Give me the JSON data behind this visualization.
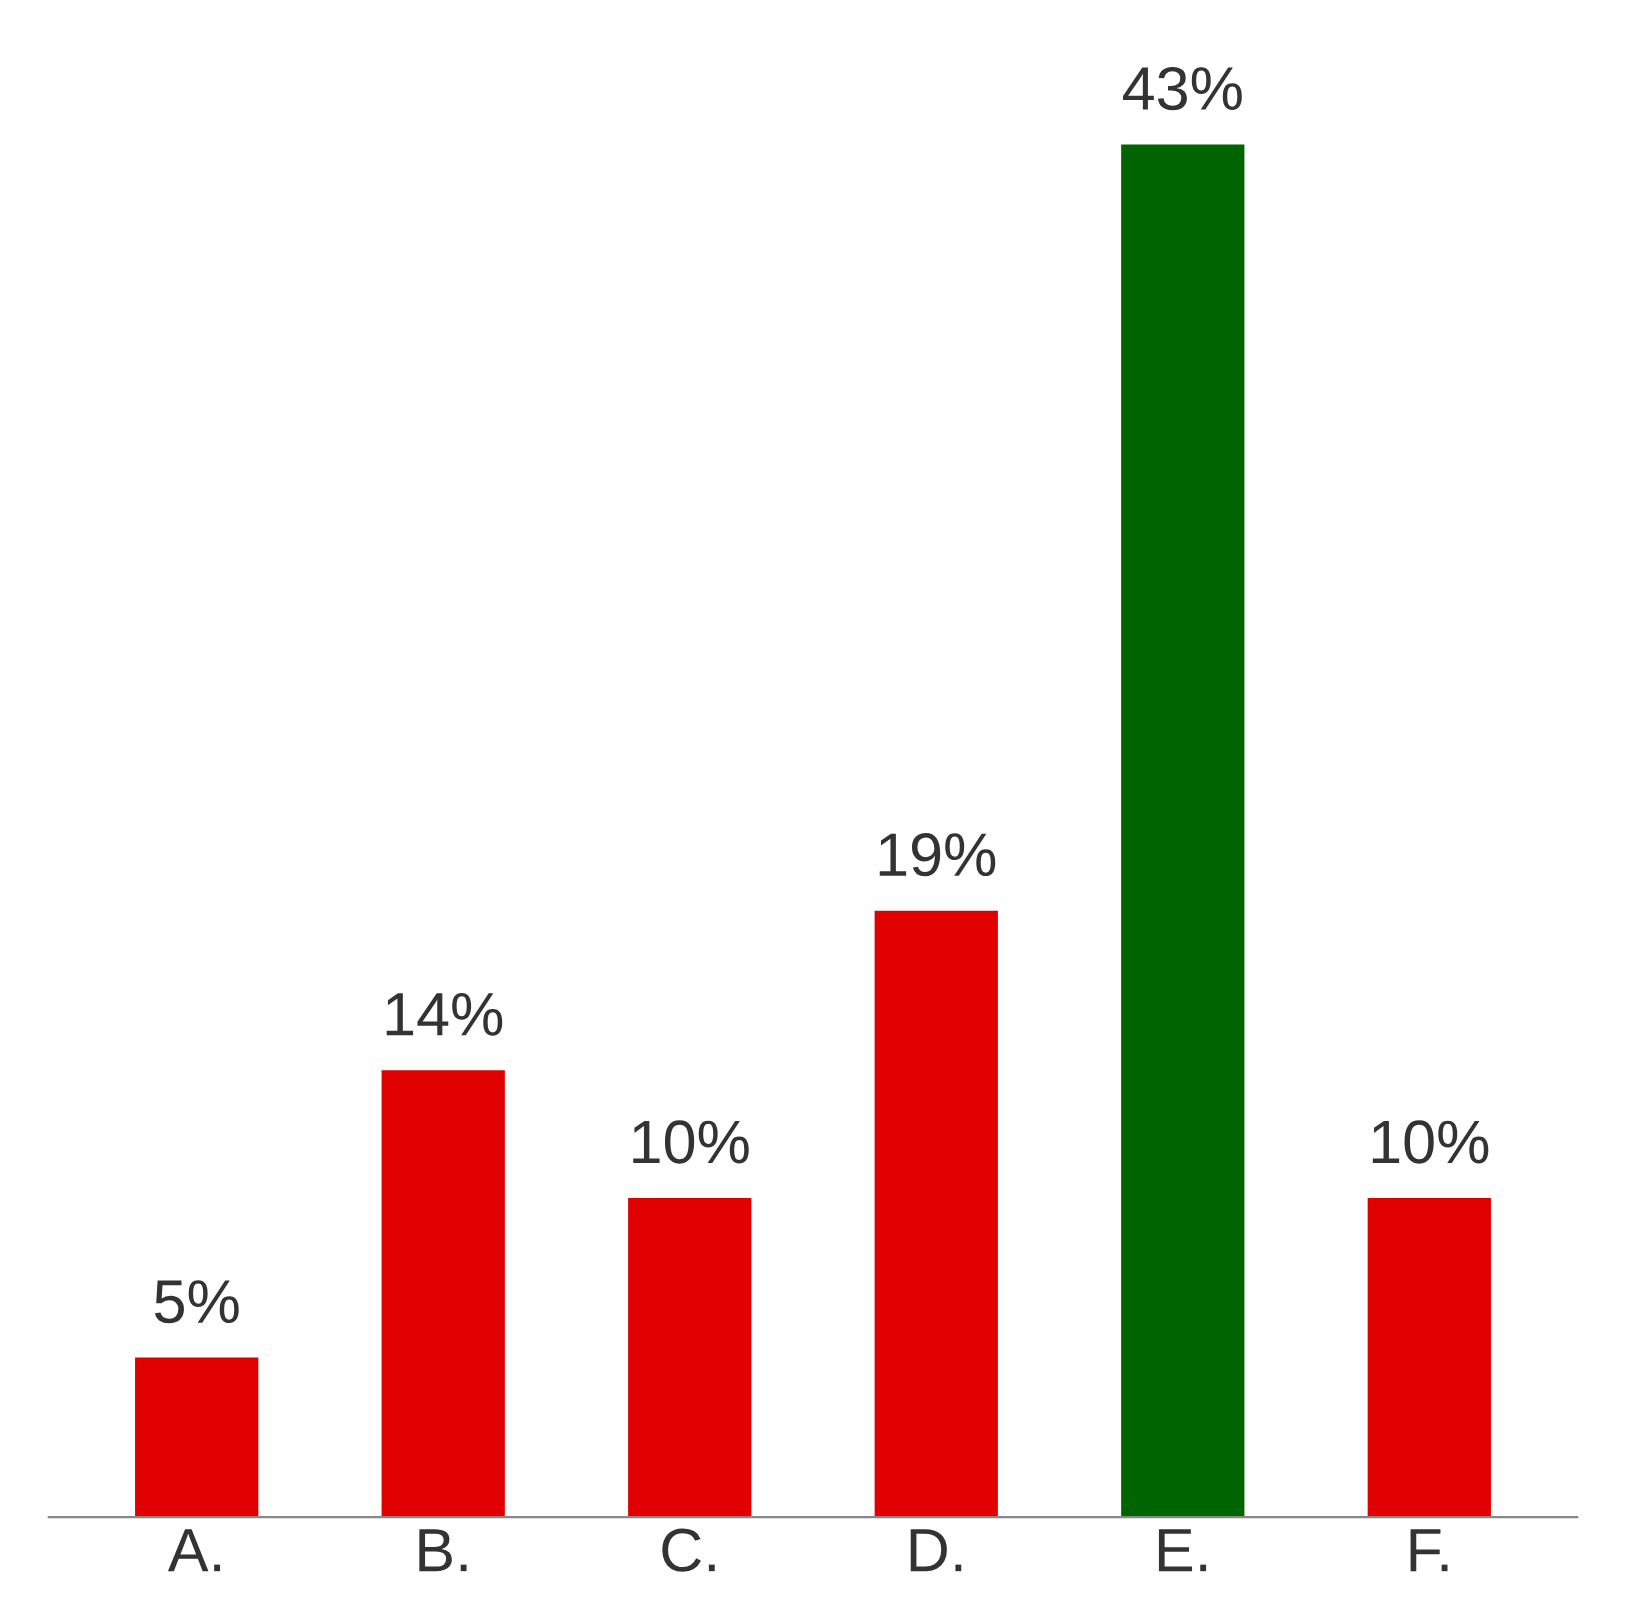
{
  "chart_data": {
    "type": "bar",
    "categories": [
      "A.",
      "B.",
      "C.",
      "D.",
      "E.",
      "F."
    ],
    "values": [
      5,
      14,
      10,
      19,
      43,
      10
    ],
    "colors": [
      "#e00000",
      "#e00000",
      "#e00000",
      "#e00000",
      "#006400",
      "#e00000"
    ],
    "value_labels": [
      "5%",
      "14%",
      "10%",
      "19%",
      "43%",
      "10%"
    ],
    "tick_labels": "x",
    "grid": false,
    "legend": false
  }
}
